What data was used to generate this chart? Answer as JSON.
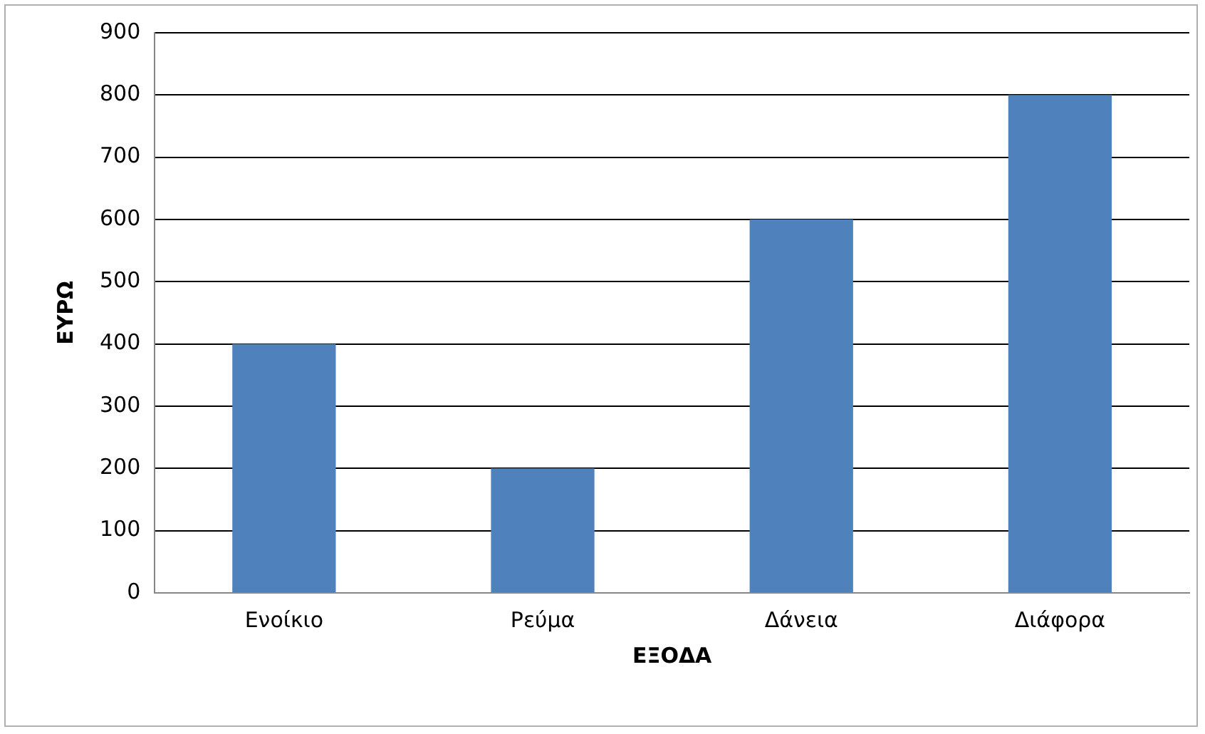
{
  "chart_data": {
    "type": "bar",
    "xlabel": "ΕΞΟΔΑ",
    "ylabel": "ΕΥΡΩ",
    "categories": [
      "Ενοίκιο",
      "Ρεύμα",
      "Δάνεια",
      "Διάφορα"
    ],
    "values": [
      400,
      200,
      600,
      800
    ],
    "color": "#4f81bd",
    "ylim": [
      0,
      900
    ],
    "yticks": [
      0,
      100,
      200,
      300,
      400,
      500,
      600,
      700,
      800,
      900
    ],
    "grid": "y",
    "legend": false
  }
}
